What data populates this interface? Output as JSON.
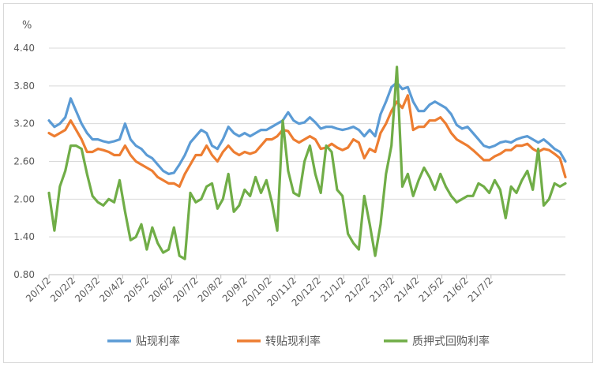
{
  "chart_data": {
    "type": "line",
    "unit_label": "%",
    "ylim": [
      0.8,
      4.4
    ],
    "yticks": [
      "4.40",
      "3.80",
      "3.20",
      "2.60",
      "2.00",
      "1.40",
      "0.80"
    ],
    "ytick_values": [
      4.4,
      3.8,
      3.2,
      2.6,
      2.0,
      1.4,
      0.8
    ],
    "xtick_labels": [
      "20/1/2",
      "20/2/2",
      "20/3/2",
      "20/4/2",
      "20/5/2",
      "20/6/2",
      "20/7/2",
      "20/8/2",
      "20/9/2",
      "20/10/2",
      "20/11/2",
      "20/12/2",
      "21/1/2",
      "21/2/2",
      "21/3/2",
      "21/4/2",
      "21/5/2",
      "21/6/2",
      "21/7/2"
    ],
    "grid": true,
    "legend_position": "bottom",
    "series": [
      {
        "name": "贴现利率",
        "color": "#5b9bd5",
        "values": [
          3.25,
          3.15,
          3.2,
          3.3,
          3.6,
          3.4,
          3.2,
          3.05,
          2.95,
          2.95,
          2.92,
          2.9,
          2.92,
          2.95,
          3.2,
          2.95,
          2.85,
          2.8,
          2.7,
          2.65,
          2.55,
          2.45,
          2.4,
          2.42,
          2.55,
          2.7,
          2.9,
          3.0,
          3.1,
          3.05,
          2.85,
          2.8,
          2.95,
          3.15,
          3.05,
          3.0,
          3.05,
          3.0,
          3.05,
          3.1,
          3.1,
          3.15,
          3.2,
          3.25,
          3.38,
          3.25,
          3.2,
          3.22,
          3.3,
          3.22,
          3.12,
          3.15,
          3.15,
          3.12,
          3.1,
          3.12,
          3.15,
          3.1,
          3.0,
          3.1,
          3.0,
          3.35,
          3.55,
          3.78,
          3.85,
          3.75,
          3.78,
          3.55,
          3.4,
          3.4,
          3.5,
          3.55,
          3.5,
          3.45,
          3.35,
          3.18,
          3.12,
          3.15,
          3.05,
          2.95,
          2.85,
          2.82,
          2.85,
          2.9,
          2.92,
          2.9,
          2.95,
          2.98,
          3.0,
          2.95,
          2.9,
          2.95,
          2.88,
          2.8,
          2.75,
          2.6
        ]
      },
      {
        "name": "转贴现利率",
        "color": "#ed7d31",
        "values": [
          3.05,
          3.0,
          3.05,
          3.1,
          3.25,
          3.1,
          2.95,
          2.75,
          2.75,
          2.8,
          2.78,
          2.75,
          2.7,
          2.7,
          2.85,
          2.7,
          2.6,
          2.55,
          2.5,
          2.45,
          2.35,
          2.3,
          2.25,
          2.25,
          2.2,
          2.4,
          2.55,
          2.7,
          2.7,
          2.85,
          2.7,
          2.6,
          2.75,
          2.85,
          2.75,
          2.7,
          2.75,
          2.72,
          2.75,
          2.85,
          2.95,
          2.95,
          3.0,
          3.1,
          3.08,
          2.95,
          2.9,
          2.95,
          3.0,
          2.95,
          2.8,
          2.82,
          2.88,
          2.82,
          2.78,
          2.82,
          2.95,
          2.9,
          2.65,
          2.8,
          2.75,
          3.05,
          3.2,
          3.4,
          3.55,
          3.45,
          3.65,
          3.1,
          3.15,
          3.15,
          3.25,
          3.25,
          3.3,
          3.2,
          3.05,
          2.95,
          2.9,
          2.85,
          2.78,
          2.7,
          2.62,
          2.62,
          2.68,
          2.72,
          2.78,
          2.78,
          2.85,
          2.85,
          2.88,
          2.8,
          2.75,
          2.8,
          2.78,
          2.72,
          2.65,
          2.35
        ]
      },
      {
        "name": "质押式回购利率",
        "color": "#70ad47",
        "values": [
          2.1,
          1.5,
          2.2,
          2.45,
          2.85,
          2.85,
          2.8,
          2.4,
          2.05,
          1.95,
          1.9,
          2.0,
          1.95,
          2.3,
          1.8,
          1.35,
          1.4,
          1.6,
          1.2,
          1.55,
          1.3,
          1.15,
          1.2,
          1.55,
          1.1,
          1.05,
          2.1,
          1.95,
          2.0,
          2.2,
          2.25,
          1.85,
          2.0,
          2.4,
          1.8,
          1.9,
          2.15,
          2.05,
          2.35,
          2.1,
          2.3,
          1.95,
          1.5,
          3.25,
          2.45,
          2.1,
          2.05,
          2.6,
          2.85,
          2.4,
          2.1,
          2.85,
          2.75,
          2.15,
          2.05,
          1.45,
          1.3,
          1.2,
          2.05,
          1.6,
          1.1,
          1.6,
          2.4,
          2.85,
          4.1,
          2.2,
          2.4,
          2.05,
          2.3,
          2.5,
          2.35,
          2.15,
          2.4,
          2.2,
          2.05,
          1.95,
          2.0,
          2.05,
          2.05,
          2.25,
          2.2,
          2.1,
          2.3,
          2.15,
          1.7,
          2.2,
          2.1,
          2.3,
          2.45,
          2.15,
          2.8,
          1.9,
          2.0,
          2.25,
          2.2,
          2.25
        ]
      }
    ]
  }
}
